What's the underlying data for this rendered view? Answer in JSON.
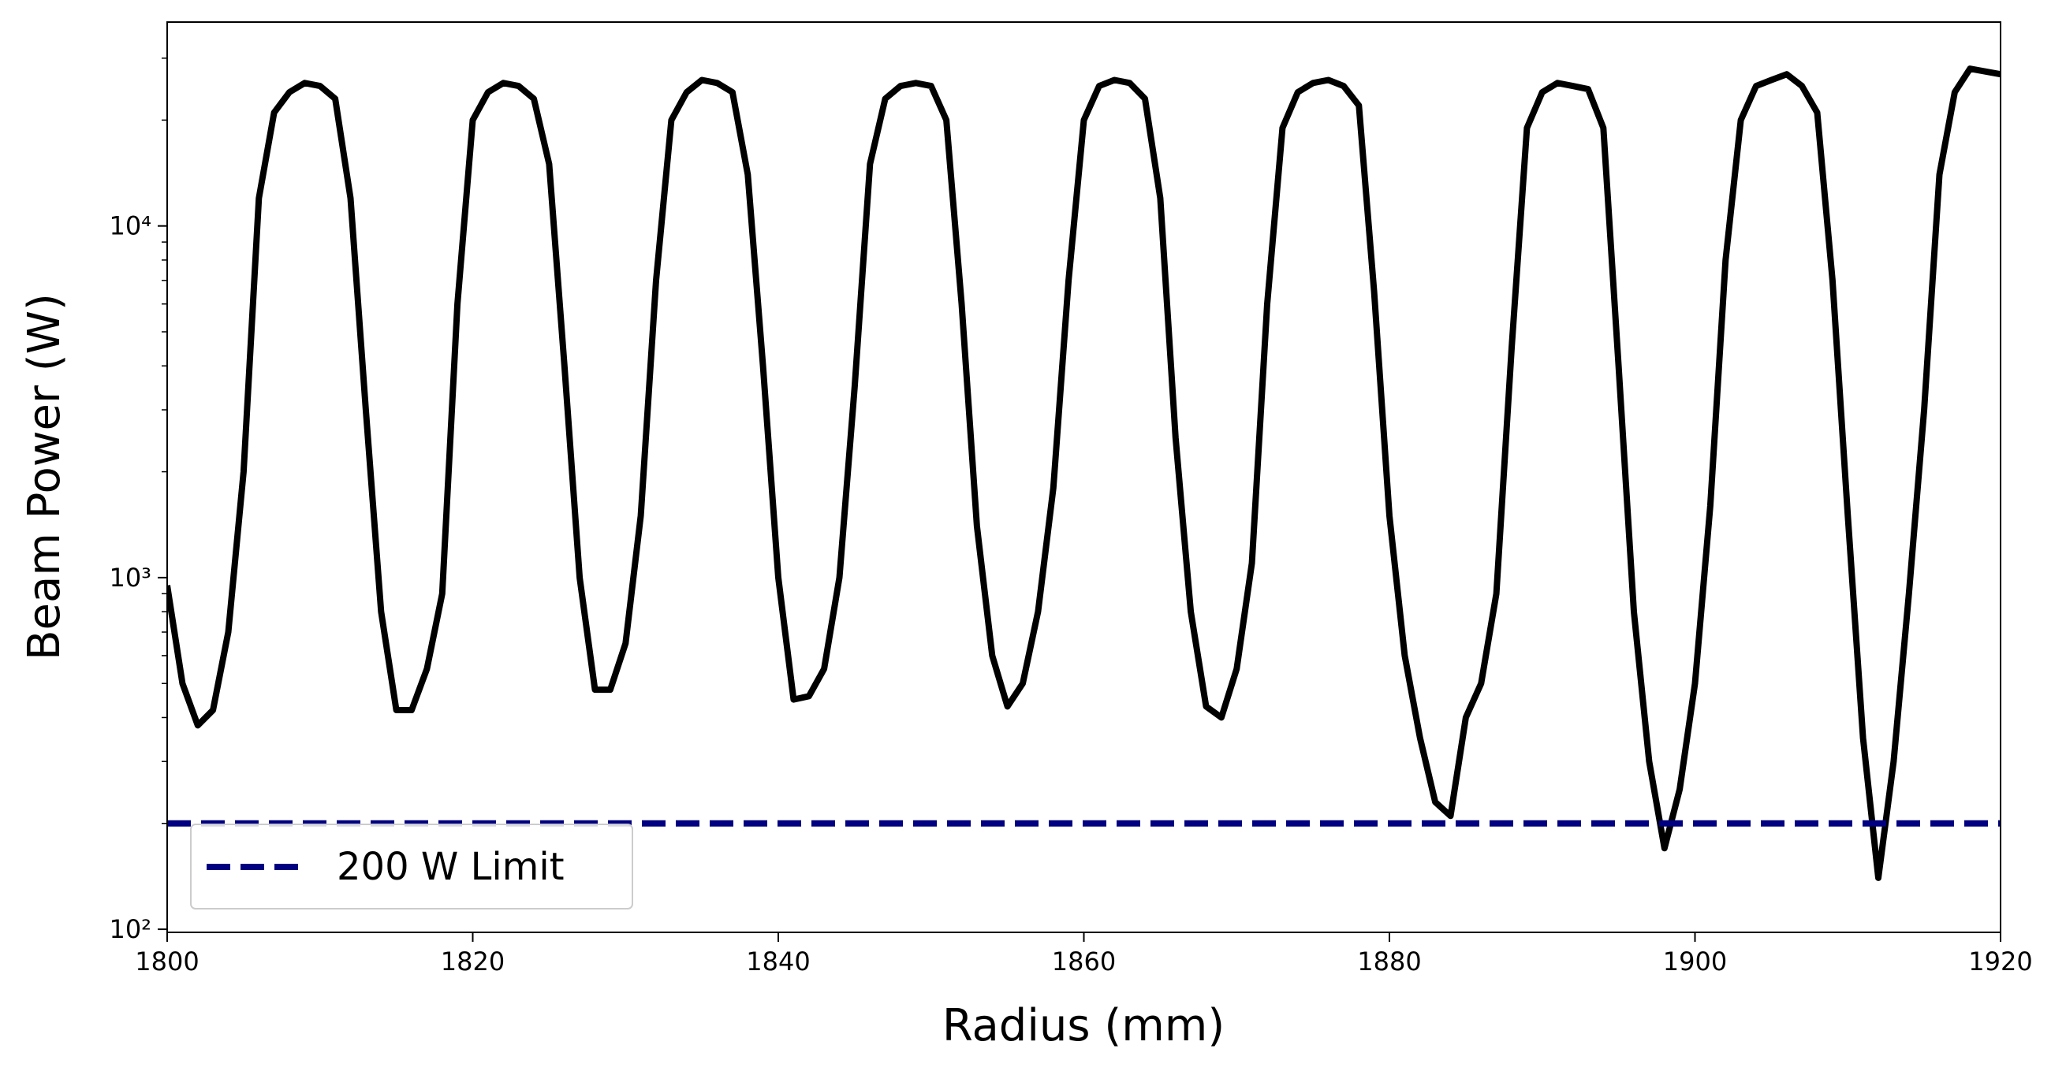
{
  "chart_data": {
    "type": "line",
    "x_label": "Radius (mm)",
    "y_label": "Beam Power (W)",
    "log_y": true,
    "color": "#000000",
    "x": [
      1800,
      1801,
      1802,
      1803,
      1804,
      1805,
      1806,
      1807,
      1808,
      1809,
      1810,
      1811,
      1812,
      1813,
      1814,
      1815,
      1816,
      1817,
      1818,
      1819,
      1820,
      1821,
      1822,
      1823,
      1824,
      1825,
      1826,
      1827,
      1828,
      1829,
      1830,
      1831,
      1832,
      1833,
      1834,
      1835,
      1836,
      1837,
      1838,
      1839,
      1840,
      1841,
      1842,
      1843,
      1844,
      1845,
      1846,
      1847,
      1848,
      1849,
      1850,
      1851,
      1852,
      1853,
      1854,
      1855,
      1856,
      1857,
      1858,
      1859,
      1860,
      1861,
      1862,
      1863,
      1864,
      1865,
      1866,
      1867,
      1868,
      1869,
      1870,
      1871,
      1872,
      1873,
      1874,
      1875,
      1876,
      1877,
      1878,
      1879,
      1880,
      1881,
      1882,
      1883,
      1884,
      1885,
      1886,
      1887,
      1888,
      1889,
      1890,
      1891,
      1892,
      1893,
      1894,
      1895,
      1896,
      1897,
      1898,
      1899,
      1900,
      1901,
      1902,
      1903,
      1904,
      1905,
      1906,
      1907,
      1908,
      1909,
      1910,
      1911,
      1912,
      1913,
      1914,
      1915,
      1916,
      1917,
      1918,
      1919,
      1920
    ],
    "values": [
      950,
      500,
      380,
      420,
      700,
      2000,
      12000,
      21000,
      24000,
      25500,
      25000,
      23000,
      12000,
      3000,
      800,
      420,
      420,
      550,
      900,
      6000,
      20000,
      24000,
      25500,
      25000,
      23000,
      15000,
      4000,
      1000,
      480,
      480,
      650,
      1500,
      7000,
      20000,
      24000,
      26000,
      25500,
      24000,
      14000,
      4000,
      1000,
      450,
      460,
      550,
      1000,
      3500,
      15000,
      23000,
      25000,
      25500,
      25000,
      20000,
      6000,
      1400,
      600,
      430,
      500,
      800,
      1800,
      7000,
      20000,
      25000,
      26000,
      25500,
      23000,
      12000,
      2500,
      800,
      430,
      400,
      550,
      1100,
      6000,
      19000,
      24000,
      25500,
      26000,
      25000,
      22000,
      6500,
      1500,
      600,
      350,
      230,
      210,
      400,
      500,
      900,
      4500,
      19000,
      24000,
      25500,
      25000,
      24500,
      19000,
      4000,
      800,
      300,
      170,
      250,
      500,
      1600,
      8000,
      20000,
      25000,
      26000,
      27000,
      25000,
      21000,
      7000,
      1500,
      350,
      140,
      300,
      900,
      3000,
      14000,
      24000,
      28000,
      27500,
      27000
    ],
    "reference_line": {
      "value": 200,
      "label": "200 W Limit",
      "color": "#000080"
    },
    "legend": "lower left",
    "xlim": [
      1800,
      1920
    ],
    "xticks": [
      1800,
      1820,
      1840,
      1860,
      1880,
      1900,
      1920
    ],
    "ylim": [
      98,
      38000
    ],
    "yticks": [
      {
        "value": 100,
        "label": "10²"
      },
      {
        "value": 1000,
        "label": "10³"
      },
      {
        "value": 10000,
        "label": "10⁴"
      }
    ],
    "yminorticks": [
      200,
      300,
      400,
      500,
      600,
      700,
      800,
      900,
      2000,
      3000,
      4000,
      5000,
      6000,
      7000,
      8000,
      9000,
      20000,
      30000
    ]
  }
}
